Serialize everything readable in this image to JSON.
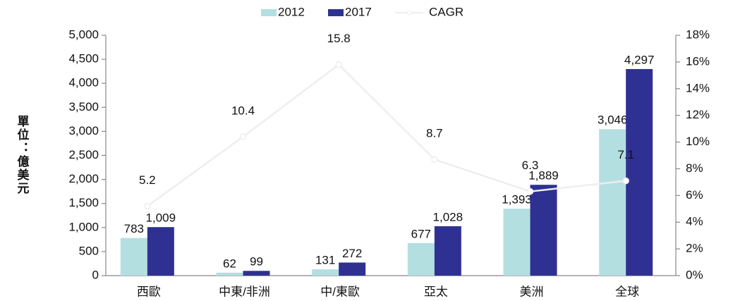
{
  "chart_data": {
    "type": "bar",
    "y_label": "單位：億美元",
    "categories": [
      "西歐",
      "中東/非洲",
      "中/東歐",
      "亞太",
      "美洲",
      "全球"
    ],
    "series": [
      {
        "name": "2012",
        "color": "#b4dfe0",
        "values": [
          783,
          62,
          131,
          677,
          1393,
          3046
        ],
        "value_labels": [
          "783",
          "62",
          "131",
          "677",
          "1,393",
          "3,046"
        ]
      },
      {
        "name": "2017",
        "color": "#2e3192",
        "values": [
          1009,
          99,
          272,
          1028,
          1889,
          4297
        ],
        "value_labels": [
          "1,009",
          "99",
          "272",
          "1,028",
          "1,889",
          "4,297"
        ]
      },
      {
        "name": "CAGR",
        "type": "line",
        "axis": "y2",
        "color": "#eeeeee",
        "values": [
          5.2,
          10.4,
          15.8,
          8.7,
          6.3,
          7.1
        ]
      }
    ],
    "ylim": [
      0,
      5000
    ],
    "yticks": [
      0,
      500,
      {
        "value": 1000,
        "label": "1,000"
      },
      {
        "value": 1500,
        "label": "1,500"
      },
      {
        "value": 2000,
        "label": "2,000"
      },
      {
        "value": 2500,
        "label": "2,500"
      },
      {
        "value": 3000,
        "label": "3,000"
      },
      {
        "value": 3500,
        "label": "3,500"
      },
      {
        "value": 4000,
        "label": "4,000"
      },
      {
        "value": 4500,
        "label": "4,500"
      },
      {
        "value": 5000,
        "label": "5,000"
      }
    ],
    "y2lim": [
      0,
      18
    ],
    "y2ticks": [
      {
        "value": 0,
        "label": "0%"
      },
      {
        "value": 2,
        "label": "2%"
      },
      {
        "value": 4,
        "label": "4%"
      },
      {
        "value": 6,
        "label": "6%"
      },
      {
        "value": 8,
        "label": "8%"
      },
      {
        "value": 10,
        "label": "10%"
      },
      {
        "value": 12,
        "label": "12%"
      },
      {
        "value": 14,
        "label": "14%"
      },
      {
        "value": 16,
        "label": "16%"
      },
      {
        "value": 18,
        "label": "18%"
      }
    ],
    "legend": "top"
  }
}
